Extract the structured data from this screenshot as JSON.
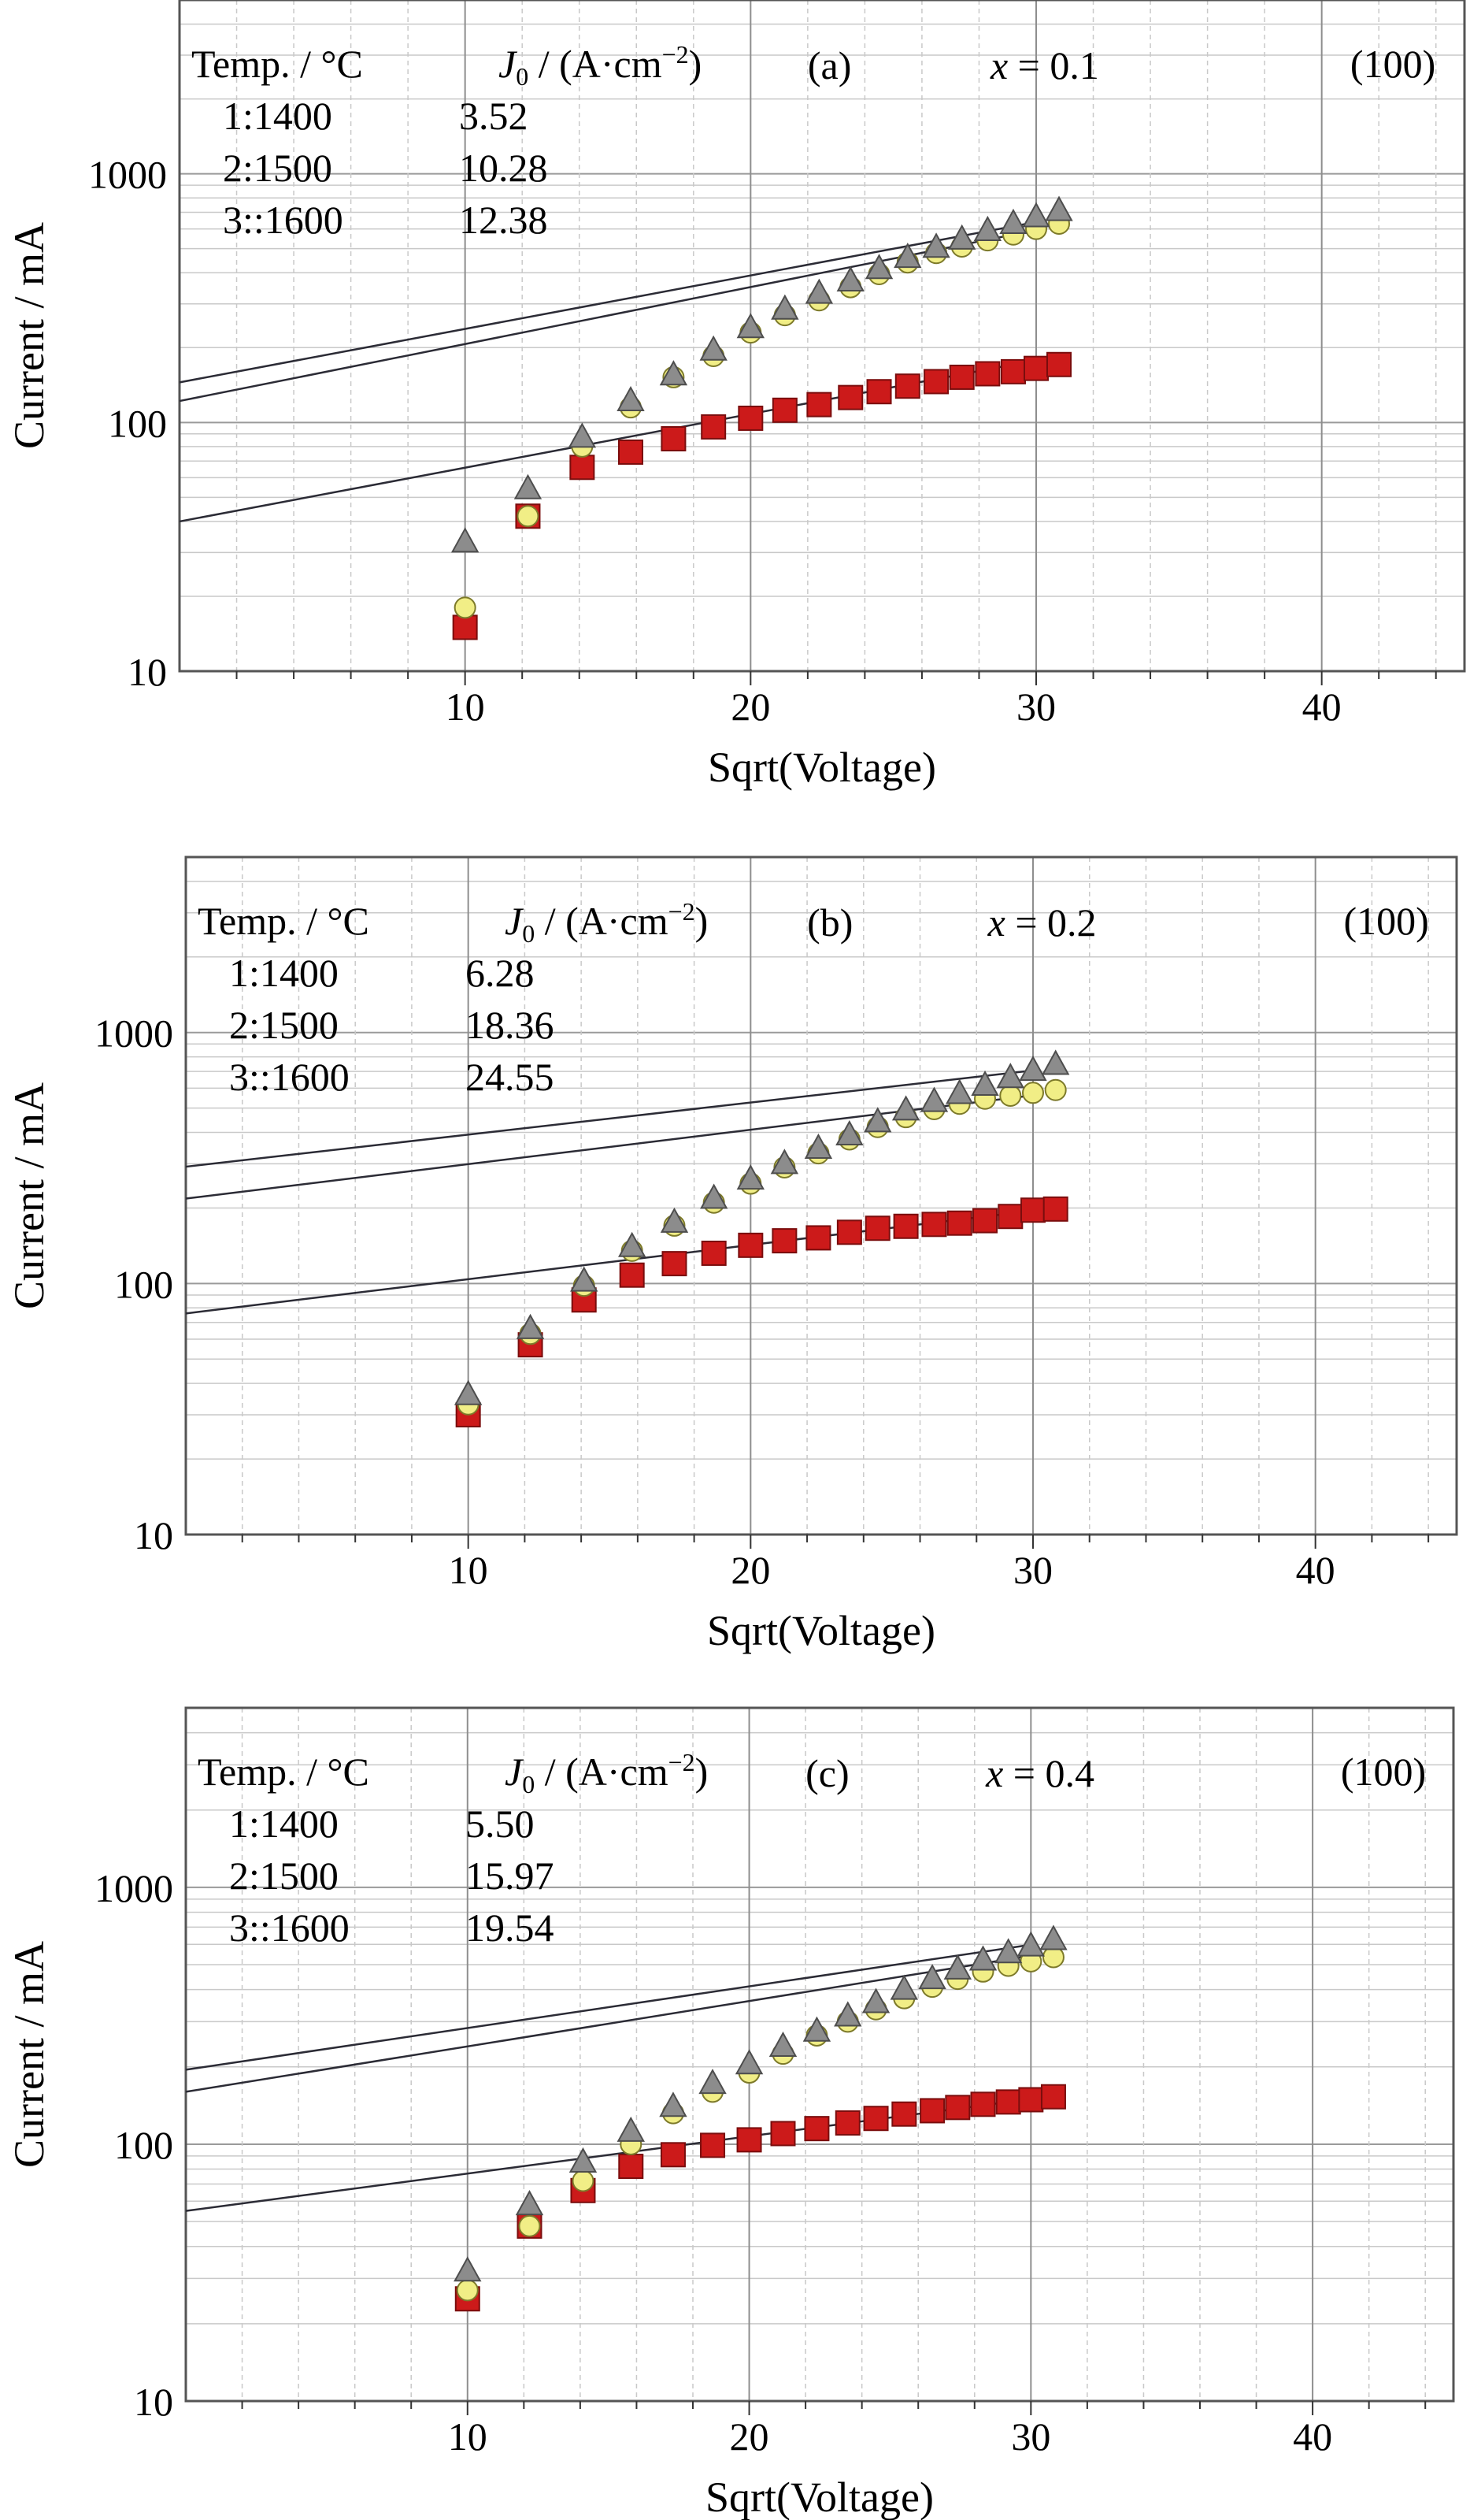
{
  "chart_data": [
    {
      "type": "scatter",
      "panel_label": "(a)",
      "composition": "x = 0.1",
      "orientation": "(100)",
      "xlabel": "Sqrt(Voltage)",
      "ylabel": "Current / mA",
      "x_scale": "linear",
      "y_scale": "log",
      "xlim": [
        0,
        45
      ],
      "ylim": [
        10,
        5000
      ],
      "x_ticks": [
        "10",
        "20",
        "30",
        "40"
      ],
      "y_ticks": [
        "10",
        "100",
        "1000"
      ],
      "grid": true,
      "legend": {
        "header_temp": "Temp. / °C",
        "header_j0": "J0 / (A·cm−2)",
        "rows": [
          {
            "temp": "1:1400",
            "j0": "3.52"
          },
          {
            "temp": "2:1500",
            "j0": "10.28"
          },
          {
            "temp": "3::1600",
            "j0": "12.38"
          }
        ]
      },
      "fit_lines": [
        {
          "x": [
            0,
            30
          ],
          "y": [
            40,
            178
          ]
        },
        {
          "x": [
            0,
            30
          ],
          "y": [
            122,
            594
          ]
        },
        {
          "x": [
            0,
            30
          ],
          "y": [
            145,
            640
          ]
        }
      ],
      "series": [
        {
          "marker": "square",
          "color": "#cc1a1a",
          "x": [
            10,
            12.2,
            14.1,
            15.8,
            17.3,
            18.7,
            20,
            21.2,
            22.4,
            23.5,
            24.5,
            25.5,
            26.5,
            27.4,
            28.3,
            29.2,
            30,
            30.8
          ],
          "y": [
            15,
            42,
            66,
            76,
            86,
            96,
            104,
            112,
            118,
            126,
            133,
            140,
            146,
            152,
            157,
            160,
            165,
            171
          ]
        },
        {
          "marker": "circle",
          "color": "#f1ee86",
          "x": [
            10,
            12.2,
            14.1,
            15.8,
            17.3,
            18.7,
            20,
            21.2,
            22.4,
            23.5,
            24.5,
            25.5,
            26.5,
            27.4,
            28.3,
            29.2,
            30,
            30.8
          ],
          "y": [
            18,
            42,
            80,
            115,
            152,
            185,
            230,
            270,
            310,
            350,
            395,
            440,
            480,
            510,
            540,
            570,
            600,
            630
          ]
        },
        {
          "marker": "triangle",
          "color": "#8c8c8c",
          "x": [
            10,
            12.2,
            14.1,
            15.8,
            17.3,
            18.7,
            20,
            21.2,
            22.4,
            23.5,
            24.5,
            25.5,
            26.5,
            27.4,
            28.3,
            29.2,
            30,
            30.8
          ],
          "y": [
            33,
            54,
            87,
            122,
            155,
            195,
            240,
            285,
            330,
            370,
            415,
            460,
            505,
            545,
            590,
            630,
            670,
            710
          ]
        }
      ]
    },
    {
      "type": "scatter",
      "panel_label": "(b)",
      "composition": "x = 0.2",
      "orientation": "(100)",
      "xlabel": "Sqrt(Voltage)",
      "ylabel": "Current / mA",
      "x_scale": "linear",
      "y_scale": "log",
      "xlim": [
        0,
        45
      ],
      "ylim": [
        10,
        5000
      ],
      "x_ticks": [
        "10",
        "20",
        "30",
        "40"
      ],
      "y_ticks": [
        "10",
        "100",
        "1000"
      ],
      "grid": true,
      "legend": {
        "header_temp": "Temp. / °C",
        "header_j0": "J0 / (A·cm−2)",
        "rows": [
          {
            "temp": "1:1400",
            "j0": "6.28"
          },
          {
            "temp": "2:1500",
            "j0": "18.36"
          },
          {
            "temp": "3::1600",
            "j0": "24.55"
          }
        ]
      },
      "fit_lines": [
        {
          "x": [
            0,
            30
          ],
          "y": [
            76,
            195
          ]
        },
        {
          "x": [
            0,
            30
          ],
          "y": [
            218,
            562
          ]
        },
        {
          "x": [
            0,
            30
          ],
          "y": [
            292,
            706
          ]
        }
      ],
      "series": [
        {
          "marker": "square",
          "color": "#cc1a1a",
          "x": [
            10,
            12.2,
            14.1,
            15.8,
            17.3,
            18.7,
            20,
            21.2,
            22.4,
            23.5,
            24.5,
            25.5,
            26.5,
            27.4,
            28.3,
            29.2,
            30,
            30.8
          ],
          "y": [
            30,
            57,
            86,
            108,
            120,
            132,
            142,
            148,
            152,
            160,
            166,
            169,
            172,
            174,
            178,
            185,
            196,
            198
          ]
        },
        {
          "marker": "circle",
          "color": "#f1ee86",
          "x": [
            10,
            12.2,
            14.1,
            15.8,
            17.3,
            18.7,
            20,
            21.2,
            22.4,
            23.5,
            24.5,
            25.5,
            26.5,
            27.4,
            28.3,
            29.2,
            30,
            30.8
          ],
          "y": [
            33,
            63,
            98,
            135,
            170,
            210,
            250,
            290,
            330,
            375,
            420,
            460,
            495,
            520,
            545,
            560,
            575,
            590
          ]
        },
        {
          "marker": "triangle",
          "color": "#8c8c8c",
          "x": [
            10,
            12.2,
            14.1,
            15.8,
            17.3,
            18.7,
            20,
            21.2,
            22.4,
            23.5,
            24.5,
            25.5,
            26.5,
            27.4,
            28.3,
            29.2,
            30,
            30.8
          ],
          "y": [
            36,
            66,
            102,
            140,
            175,
            218,
            260,
            300,
            345,
            390,
            440,
            490,
            530,
            570,
            615,
            660,
            705,
            745
          ]
        }
      ]
    },
    {
      "type": "scatter",
      "panel_label": "(c)",
      "composition": "x = 0.4",
      "orientation": "(100)",
      "xlabel": "Sqrt(Voltage)",
      "ylabel": "Current / mA",
      "x_scale": "linear",
      "y_scale": "log",
      "xlim": [
        0,
        45
      ],
      "ylim": [
        10,
        5000
      ],
      "x_ticks": [
        "10",
        "20",
        "30",
        "40"
      ],
      "y_ticks": [
        "10",
        "100",
        "1000"
      ],
      "grid": true,
      "legend": {
        "header_temp": "Temp. / °C",
        "header_j0": "J0 / (A·cm−2)",
        "rows": [
          {
            "temp": "1:1400",
            "j0": "5.50"
          },
          {
            "temp": "2:1500",
            "j0": "15.97"
          },
          {
            "temp": "3::1600",
            "j0": "19.54"
          }
        ]
      },
      "fit_lines": [
        {
          "x": [
            0,
            30
          ],
          "y": [
            55,
            150
          ]
        },
        {
          "x": [
            0,
            30
          ],
          "y": [
            160,
            542
          ]
        },
        {
          "x": [
            0,
            30
          ],
          "y": [
            195,
            598
          ]
        }
      ],
      "series": [
        {
          "marker": "square",
          "color": "#cc1a1a",
          "x": [
            10,
            12.2,
            14.1,
            15.8,
            17.3,
            18.7,
            20,
            21.2,
            22.4,
            23.5,
            24.5,
            25.5,
            26.5,
            27.4,
            28.3,
            29.2,
            30,
            30.8
          ],
          "y": [
            25,
            48,
            66,
            82,
            91,
            99,
            104,
            110,
            115,
            121,
            126,
            131,
            135,
            139,
            143,
            146,
            149,
            153
          ]
        },
        {
          "marker": "circle",
          "color": "#f1ee86",
          "x": [
            10,
            12.2,
            14.1,
            15.8,
            17.3,
            18.7,
            20,
            21.2,
            22.4,
            23.5,
            24.5,
            25.5,
            26.5,
            27.4,
            28.3,
            29.2,
            30,
            30.8
          ],
          "y": [
            27,
            48,
            72,
            100,
            132,
            160,
            190,
            225,
            265,
            300,
            335,
            370,
            410,
            440,
            470,
            495,
            515,
            535
          ]
        },
        {
          "marker": "triangle",
          "color": "#8c8c8c",
          "x": [
            10,
            12.2,
            14.1,
            15.8,
            17.3,
            18.7,
            20,
            21.2,
            22.4,
            23.5,
            24.5,
            25.5,
            26.5,
            27.4,
            28.3,
            29.2,
            30,
            30.8
          ],
          "y": [
            32,
            58,
            85,
            112,
            140,
            172,
            205,
            240,
            275,
            315,
            355,
            400,
            440,
            480,
            520,
            555,
            590,
            625
          ]
        }
      ]
    }
  ]
}
